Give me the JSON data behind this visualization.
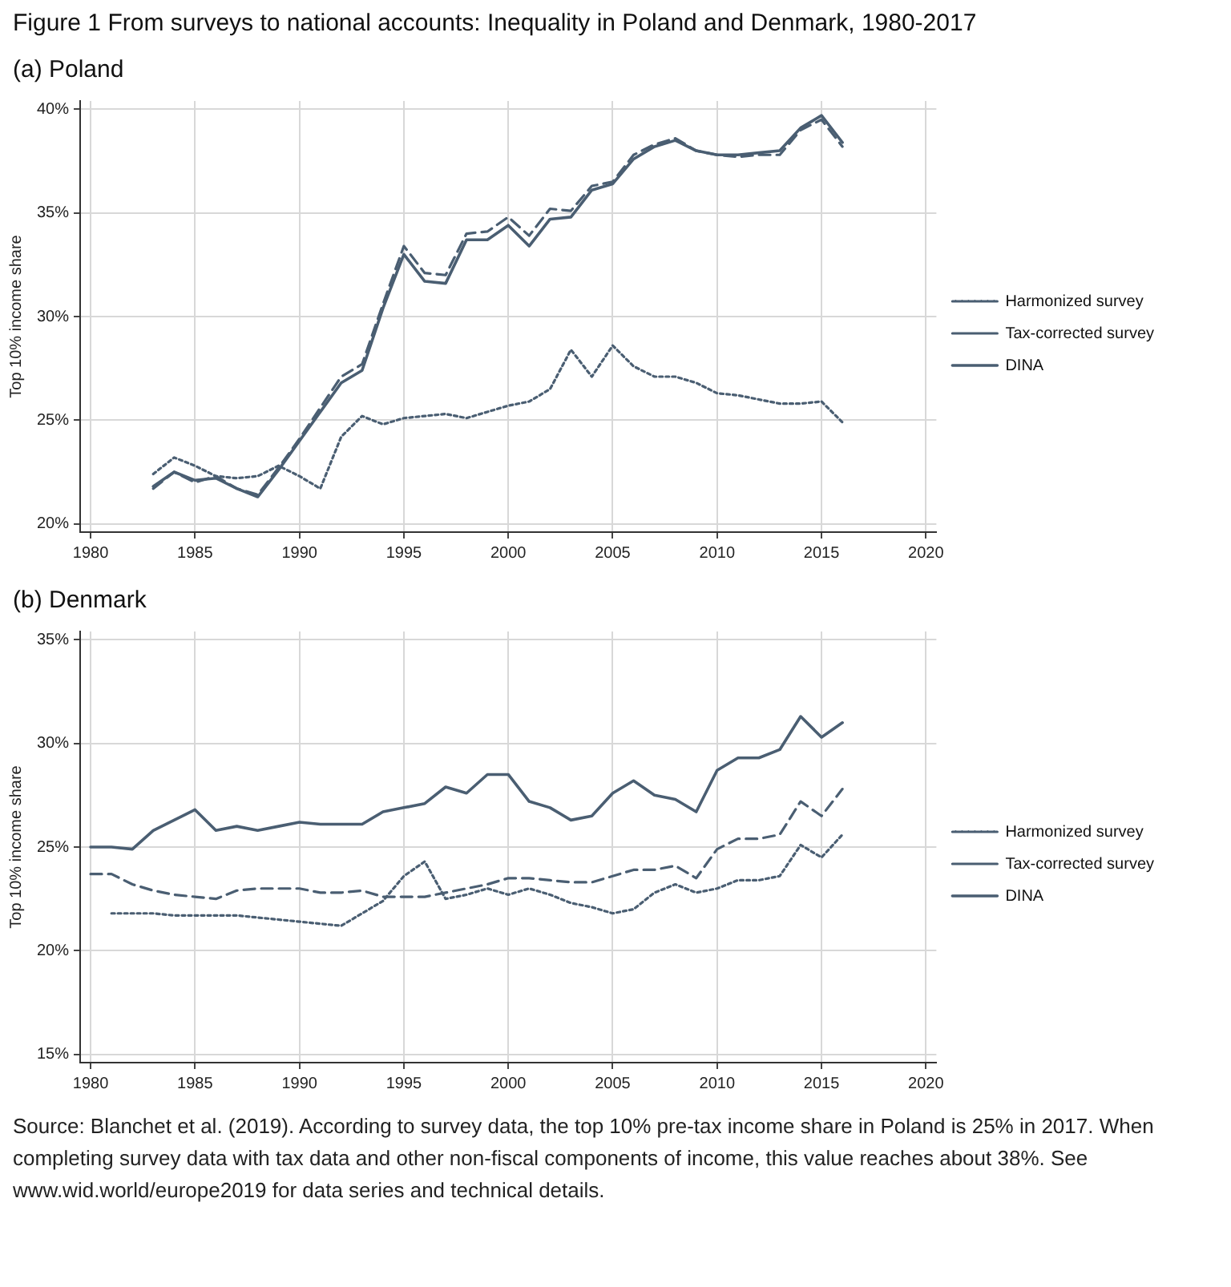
{
  "chart_data": [
    {
      "type": "line",
      "title": "Figure 1 From surveys to national accounts: Inequality in Poland and Denmark, 1980-2017",
      "subtitle": "(a) Poland",
      "ylabel": "Top 10% income share",
      "x": [
        1983,
        1984,
        1985,
        1986,
        1987,
        1988,
        1989,
        1990,
        1991,
        1992,
        1993,
        1994,
        1995,
        1996,
        1997,
        1998,
        1999,
        2000,
        2001,
        2002,
        2003,
        2004,
        2005,
        2006,
        2007,
        2008,
        2009,
        2010,
        2011,
        2012,
        2013,
        2014,
        2015,
        2016
      ],
      "series": [
        {
          "name": "Harmonized survey",
          "color": "#4a5e72",
          "line_style": "dotted",
          "values": [
            22.4,
            23.2,
            22.8,
            22.3,
            22.2,
            22.3,
            22.8,
            22.3,
            21.7,
            24.2,
            25.2,
            24.8,
            25.1,
            25.2,
            25.3,
            25.1,
            25.4,
            25.7,
            25.9,
            26.5,
            28.4,
            27.1,
            28.6,
            27.6,
            27.1,
            27.1,
            26.8,
            26.3,
            26.2,
            26.0,
            25.8,
            25.8,
            25.9,
            24.9
          ]
        },
        {
          "name": "Tax-corrected survey",
          "color": "#4a5e72",
          "line_style": "dashed",
          "values": [
            21.7,
            22.5,
            22.0,
            22.3,
            21.7,
            21.4,
            22.7,
            24.1,
            25.6,
            27.1,
            27.7,
            30.6,
            33.4,
            32.1,
            32.0,
            34.0,
            34.1,
            34.8,
            33.9,
            35.2,
            35.1,
            36.3,
            36.5,
            37.8,
            38.3,
            38.6,
            38.0,
            37.8,
            37.7,
            37.8,
            37.8,
            39.0,
            39.5,
            38.2
          ]
        },
        {
          "name": "DINA",
          "color": "#4a5e72",
          "line_style": "solid",
          "values": [
            21.8,
            22.5,
            22.1,
            22.2,
            21.7,
            21.3,
            22.6,
            24.0,
            25.4,
            26.8,
            27.4,
            30.4,
            33.0,
            31.7,
            31.6,
            33.7,
            33.7,
            34.4,
            33.4,
            34.7,
            34.8,
            36.1,
            36.4,
            37.6,
            38.2,
            38.5,
            38.0,
            37.8,
            37.8,
            37.9,
            38.0,
            39.1,
            39.7,
            38.4
          ]
        }
      ],
      "xlim": [
        1979.5,
        2020.5
      ],
      "xticks": [
        1980,
        1985,
        1990,
        1995,
        2000,
        2005,
        2010,
        2015,
        2020
      ],
      "ylim": [
        19.6,
        40.4
      ],
      "yticks": [
        {
          "value": 20,
          "label": "20%"
        },
        {
          "value": 25,
          "label": "25%"
        },
        {
          "value": 30,
          "label": "30%"
        },
        {
          "value": 35,
          "label": "35%"
        },
        {
          "value": 40,
          "label": "40%"
        }
      ],
      "grid": true,
      "legend": "right",
      "marker": "none"
    },
    {
      "type": "line",
      "subtitle": "(b) Denmark",
      "ylabel": "Top 10% income share",
      "x": [
        1980,
        1981,
        1982,
        1983,
        1984,
        1985,
        1986,
        1987,
        1988,
        1989,
        1990,
        1991,
        1992,
        1993,
        1994,
        1995,
        1996,
        1997,
        1998,
        1999,
        2000,
        2001,
        2002,
        2003,
        2004,
        2005,
        2006,
        2007,
        2008,
        2009,
        2010,
        2011,
        2012,
        2013,
        2014,
        2015,
        2016
      ],
      "series": [
        {
          "name": "Harmonized survey",
          "color": "#4a5e72",
          "line_style": "dotted",
          "values": [
            null,
            21.8,
            21.8,
            21.8,
            21.7,
            21.7,
            21.7,
            21.7,
            21.6,
            21.5,
            21.4,
            21.3,
            21.2,
            21.8,
            22.4,
            23.6,
            24.3,
            22.5,
            22.7,
            23.0,
            22.7,
            23.0,
            22.7,
            22.3,
            22.1,
            21.8,
            22.0,
            22.8,
            23.2,
            22.8,
            23.0,
            23.4,
            23.4,
            23.6,
            25.1,
            24.5,
            25.6
          ]
        },
        {
          "name": "Tax-corrected survey",
          "color": "#4a5e72",
          "line_style": "dashed",
          "values": [
            23.7,
            23.7,
            23.2,
            22.9,
            22.7,
            22.6,
            22.5,
            22.9,
            23.0,
            23.0,
            23.0,
            22.8,
            22.8,
            22.9,
            22.6,
            22.6,
            22.6,
            22.8,
            23.0,
            23.2,
            23.5,
            23.5,
            23.4,
            23.3,
            23.3,
            23.6,
            23.9,
            23.9,
            24.1,
            23.5,
            24.9,
            25.4,
            25.4,
            25.6,
            27.2,
            26.5,
            27.8
          ]
        },
        {
          "name": "DINA",
          "color": "#4a5e72",
          "line_style": "solid",
          "values": [
            25.0,
            25.0,
            24.9,
            25.8,
            26.3,
            26.8,
            25.8,
            26.0,
            25.8,
            26.0,
            26.2,
            26.1,
            26.1,
            26.1,
            26.7,
            26.9,
            27.1,
            27.9,
            27.6,
            28.5,
            28.5,
            27.2,
            26.9,
            26.3,
            26.5,
            27.6,
            28.2,
            27.5,
            27.3,
            26.7,
            28.7,
            29.3,
            29.3,
            29.7,
            31.3,
            30.3,
            31.0
          ]
        }
      ],
      "xlim": [
        1979.5,
        2020.5
      ],
      "xticks": [
        1980,
        1985,
        1990,
        1995,
        2000,
        2005,
        2010,
        2015,
        2020
      ],
      "ylim": [
        14.6,
        35.4
      ],
      "yticks": [
        {
          "value": 15,
          "label": "15%"
        },
        {
          "value": 20,
          "label": "20%"
        },
        {
          "value": 25,
          "label": "25%"
        },
        {
          "value": 30,
          "label": "30%"
        },
        {
          "value": 35,
          "label": "35%"
        }
      ],
      "grid": true,
      "legend": "right",
      "marker": "none",
      "annotations": [
        "Source: Blanchet et al. (2019). According to survey data, the top 10% pre-tax income share in Poland is 25% in 2017. When completing survey data with tax data and other non-fiscal components of income, this value reaches about 38%. See www.wid.world/europe2019 for data series and technical details."
      ]
    }
  ]
}
